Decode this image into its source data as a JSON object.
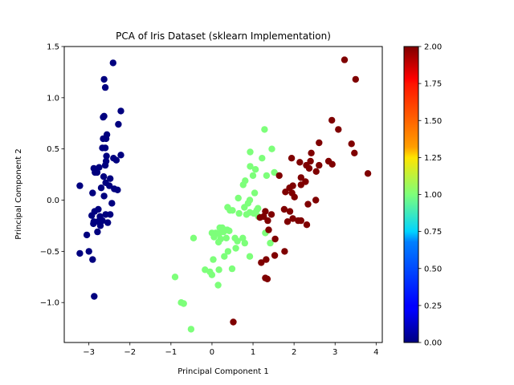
{
  "chart_data": {
    "type": "scatter",
    "title": "PCA of Iris Dataset (sklearn Implementation)",
    "xlabel": "Principal Component 1",
    "ylabel": "Principal Component 2",
    "xlim": [
      -3.6,
      4.15
    ],
    "ylim": [
      -1.39,
      1.5
    ],
    "xticks": [
      -3,
      -2,
      -1,
      0,
      1,
      2,
      3,
      4
    ],
    "xtick_labels": [
      "−3",
      "−2",
      "−1",
      "0",
      "1",
      "2",
      "3",
      "4"
    ],
    "yticks": [
      -1.0,
      -0.5,
      0.0,
      0.5,
      1.0,
      1.5
    ],
    "ytick_labels": [
      "−1.0",
      "−0.5",
      "0.0",
      "0.5",
      "1.0",
      "1.5"
    ],
    "grid": false,
    "colormap": "jet",
    "colorbar": {
      "range": [
        0,
        2
      ],
      "ticks": [
        0,
        0.25,
        0.5,
        0.75,
        1.0,
        1.25,
        1.5,
        1.75,
        2.0
      ],
      "tick_labels": [
        "0.00",
        "0.25",
        "0.50",
        "0.75",
        "1.00",
        "1.25",
        "1.50",
        "1.75",
        "2.00"
      ]
    },
    "series": [
      {
        "class_value": 0,
        "color": "#00007f",
        "points": [
          [
            -2.41,
            1.34
          ],
          [
            -2.63,
            1.18
          ],
          [
            -2.6,
            1.1
          ],
          [
            -2.22,
            0.87
          ],
          [
            -2.63,
            0.82
          ],
          [
            -2.65,
            0.81
          ],
          [
            -2.28,
            0.74
          ],
          [
            -2.56,
            0.64
          ],
          [
            -2.65,
            0.6
          ],
          [
            -2.58,
            0.6
          ],
          [
            -2.6,
            0.51
          ],
          [
            -2.67,
            0.51
          ],
          [
            -2.57,
            0.43
          ],
          [
            -2.22,
            0.44
          ],
          [
            -2.4,
            0.41
          ],
          [
            -2.33,
            0.39
          ],
          [
            -2.58,
            0.38
          ],
          [
            -2.6,
            0.34
          ],
          [
            -2.75,
            0.32
          ],
          [
            -2.85,
            0.27
          ],
          [
            -2.8,
            0.27
          ],
          [
            -2.88,
            0.31
          ],
          [
            -2.64,
            0.23
          ],
          [
            -2.48,
            0.21
          ],
          [
            -2.59,
            0.17
          ],
          [
            -2.5,
            0.14
          ],
          [
            -3.22,
            0.14
          ],
          [
            -2.7,
            0.12
          ],
          [
            -2.38,
            0.11
          ],
          [
            -2.3,
            0.1
          ],
          [
            -2.91,
            0.07
          ],
          [
            -2.63,
            0.04
          ],
          [
            -2.44,
            -0.03
          ],
          [
            -2.77,
            -0.09
          ],
          [
            -2.86,
            -0.11
          ],
          [
            -2.93,
            -0.15
          ],
          [
            -2.59,
            -0.14
          ],
          [
            -2.48,
            -0.14
          ],
          [
            -2.73,
            -0.16
          ],
          [
            -2.67,
            -0.2
          ],
          [
            -2.71,
            -0.2
          ],
          [
            -2.88,
            -0.21
          ],
          [
            -2.78,
            -0.21
          ],
          [
            -2.89,
            -0.23
          ],
          [
            -2.54,
            -0.22
          ],
          [
            -2.72,
            -0.25
          ],
          [
            -2.79,
            -0.31
          ],
          [
            -3.05,
            -0.34
          ],
          [
            -3.0,
            -0.5
          ],
          [
            -3.22,
            -0.52
          ],
          [
            -2.91,
            -0.58
          ],
          [
            -2.87,
            -0.94
          ]
        ]
      },
      {
        "class_value": 1,
        "color": "#7dff7a",
        "points": [
          [
            1.28,
            0.69
          ],
          [
            1.46,
            0.5
          ],
          [
            0.93,
            0.47
          ],
          [
            1.22,
            0.41
          ],
          [
            0.93,
            0.33
          ],
          [
            1.06,
            0.3
          ],
          [
            1.0,
            0.24
          ],
          [
            1.33,
            0.24
          ],
          [
            1.52,
            0.27
          ],
          [
            0.81,
            0.19
          ],
          [
            0.76,
            0.15
          ],
          [
            0.64,
            0.02
          ],
          [
            0.92,
            0.0
          ],
          [
            1.04,
            0.07
          ],
          [
            0.88,
            -0.03
          ],
          [
            0.79,
            -0.07
          ],
          [
            1.12,
            -0.08
          ],
          [
            1.09,
            -0.1
          ],
          [
            0.92,
            -0.12
          ],
          [
            0.84,
            -0.14
          ],
          [
            0.66,
            -0.13
          ],
          [
            1.02,
            -0.13
          ],
          [
            0.38,
            -0.07
          ],
          [
            0.44,
            -0.1
          ],
          [
            0.5,
            -0.1
          ],
          [
            1.13,
            -0.16
          ],
          [
            0.19,
            -0.27
          ],
          [
            0.37,
            -0.29
          ],
          [
            0.0,
            -0.32
          ],
          [
            0.09,
            -0.32
          ],
          [
            0.17,
            -0.33
          ],
          [
            0.25,
            -0.27
          ],
          [
            0.28,
            -0.31
          ],
          [
            0.42,
            -0.3
          ],
          [
            0.56,
            -0.37
          ],
          [
            0.21,
            -0.38
          ],
          [
            0.35,
            -0.37
          ],
          [
            0.62,
            -0.4
          ],
          [
            0.8,
            -0.42
          ],
          [
            0.75,
            -0.37
          ],
          [
            1.3,
            -0.32
          ],
          [
            1.42,
            -0.42
          ],
          [
            0.05,
            -0.36
          ],
          [
            0.16,
            -0.41
          ],
          [
            0.58,
            -0.47
          ],
          [
            0.39,
            -0.5
          ],
          [
            0.3,
            -0.55
          ],
          [
            0.92,
            -0.55
          ],
          [
            0.03,
            -0.58
          ],
          [
            -0.17,
            -0.68
          ],
          [
            0.17,
            -0.68
          ],
          [
            0.49,
            -0.67
          ],
          [
            -0.05,
            -0.7
          ],
          [
            0.0,
            -0.73
          ],
          [
            0.15,
            -0.83
          ],
          [
            -0.9,
            -0.75
          ],
          [
            -0.75,
            -1.0
          ],
          [
            -0.69,
            -1.01
          ],
          [
            -0.51,
            -1.26
          ],
          [
            -0.45,
            -0.37
          ]
        ]
      },
      {
        "class_value": 2,
        "color": "#7f0000",
        "points": [
          [
            3.23,
            1.37
          ],
          [
            3.5,
            1.18
          ],
          [
            2.92,
            0.78
          ],
          [
            3.08,
            0.69
          ],
          [
            2.61,
            0.56
          ],
          [
            3.4,
            0.55
          ],
          [
            3.47,
            0.46
          ],
          [
            2.42,
            0.46
          ],
          [
            2.3,
            0.34
          ],
          [
            2.4,
            0.38
          ],
          [
            2.61,
            0.34
          ],
          [
            2.84,
            0.38
          ],
          [
            2.93,
            0.35
          ],
          [
            1.94,
            0.41
          ],
          [
            2.14,
            0.37
          ],
          [
            2.37,
            0.31
          ],
          [
            2.54,
            0.28
          ],
          [
            1.64,
            0.24
          ],
          [
            2.17,
            0.22
          ],
          [
            2.28,
            0.18
          ],
          [
            2.17,
            0.15
          ],
          [
            1.97,
            0.14
          ],
          [
            1.89,
            0.12
          ],
          [
            1.79,
            0.08
          ],
          [
            1.95,
            0.07
          ],
          [
            2.01,
            0.03
          ],
          [
            2.53,
            0.0
          ],
          [
            2.34,
            -0.04
          ],
          [
            3.8,
            0.26
          ],
          [
            1.76,
            -0.09
          ],
          [
            1.9,
            -0.11
          ],
          [
            1.3,
            -0.11
          ],
          [
            1.45,
            -0.14
          ],
          [
            1.26,
            -0.16
          ],
          [
            1.17,
            -0.17
          ],
          [
            1.36,
            -0.2
          ],
          [
            1.97,
            -0.18
          ],
          [
            2.1,
            -0.2
          ],
          [
            2.17,
            -0.2
          ],
          [
            1.84,
            -0.21
          ],
          [
            2.31,
            -0.24
          ],
          [
            1.38,
            -0.29
          ],
          [
            1.54,
            -0.38
          ],
          [
            1.2,
            -0.61
          ],
          [
            1.32,
            -0.58
          ],
          [
            1.53,
            -0.54
          ],
          [
            1.77,
            -0.5
          ],
          [
            1.3,
            -0.76
          ],
          [
            1.35,
            -0.77
          ],
          [
            0.52,
            -1.19
          ]
        ]
      }
    ]
  }
}
